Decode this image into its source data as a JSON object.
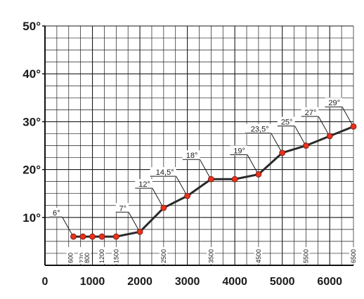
{
  "chart_data": {
    "type": "line",
    "title": "",
    "xlabel": "",
    "ylabel": "",
    "xlim": [
      0,
      6500
    ],
    "ylim": [
      0,
      50
    ],
    "grid": true,
    "x_ticks": [
      "0",
      "1000",
      "2000",
      "3000",
      "4000",
      "5000",
      "6000"
    ],
    "y_ticks": [
      "10°",
      "20°",
      "30°",
      "40°",
      "50°"
    ],
    "rotated_x_labels": [
      {
        "x": 600,
        "label": "600"
      },
      {
        "x": 770,
        "label": "770"
      },
      {
        "x": 800,
        "label": "800"
      },
      {
        "x": 1200,
        "label": "1200"
      },
      {
        "x": 1500,
        "label": "1500"
      },
      {
        "x": 2500,
        "label": "2500"
      },
      {
        "x": 3500,
        "label": "3500"
      },
      {
        "x": 4500,
        "label": "4500"
      },
      {
        "x": 5500,
        "label": "5500"
      },
      {
        "x": 6500,
        "label": "6500"
      }
    ],
    "series": [
      {
        "color": "#e8321e",
        "line_color": "#2a2a2a",
        "points": [
          {
            "x": 600,
            "y": 6
          },
          {
            "x": 800,
            "y": 6
          },
          {
            "x": 1000,
            "y": 6
          },
          {
            "x": 1200,
            "y": 6
          },
          {
            "x": 1500,
            "y": 6
          },
          {
            "x": 2000,
            "y": 7
          },
          {
            "x": 2500,
            "y": 12
          },
          {
            "x": 3000,
            "y": 14.5
          },
          {
            "x": 3500,
            "y": 18
          },
          {
            "x": 4000,
            "y": 18
          },
          {
            "x": 4500,
            "y": 19
          },
          {
            "x": 5000,
            "y": 23.5
          },
          {
            "x": 5500,
            "y": 25
          },
          {
            "x": 6000,
            "y": 27
          },
          {
            "x": 6500,
            "y": 29
          }
        ]
      }
    ],
    "annotations": [
      {
        "x": 600,
        "y": 6,
        "label": "6°"
      },
      {
        "x": 2000,
        "y": 7,
        "label": "7°"
      },
      {
        "x": 2500,
        "y": 12,
        "label": "12°"
      },
      {
        "x": 3000,
        "y": 14.5,
        "label": "14,5°"
      },
      {
        "x": 3500,
        "y": 18,
        "label": "18°"
      },
      {
        "x": 4500,
        "y": 19,
        "label": "19°"
      },
      {
        "x": 5000,
        "y": 23.5,
        "label": "23,5°"
      },
      {
        "x": 5500,
        "y": 25,
        "label": "25°"
      },
      {
        "x": 6000,
        "y": 27,
        "label": "27°"
      },
      {
        "x": 6500,
        "y": 29,
        "label": "29°"
      }
    ]
  }
}
